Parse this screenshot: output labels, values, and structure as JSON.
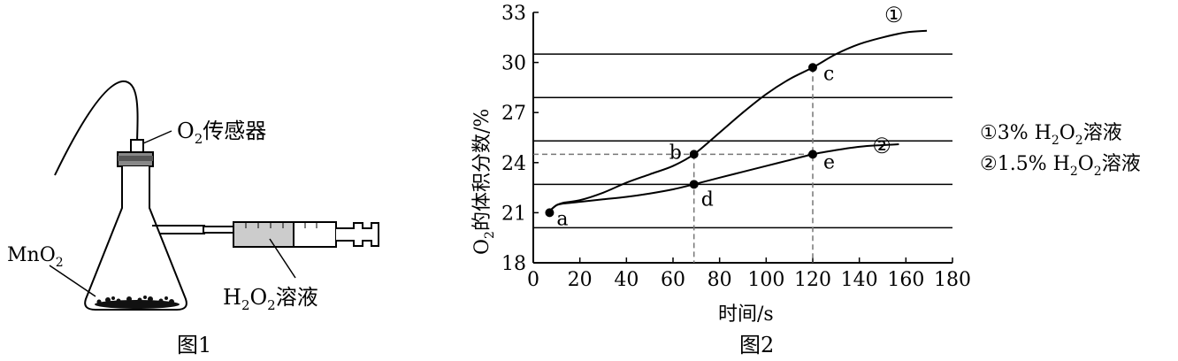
{
  "figure1": {
    "caption": "图1",
    "sensor_label": {
      "prefix": "O",
      "sub": "2",
      "suffix": "传感器"
    },
    "catalyst_label": {
      "prefix": "MnO",
      "sub": "2"
    },
    "syringe_label": {
      "p1": "H",
      "s1": "2",
      "p2": "O",
      "s2": "2",
      "suffix": "溶液"
    }
  },
  "figure2": {
    "caption": "图2"
  },
  "chart_data": {
    "type": "line",
    "xlabel": "时间/s",
    "ylabel": {
      "prefix": "O",
      "sub": "2",
      "suffix": "的体积分数/%"
    },
    "xlim": [
      0,
      180
    ],
    "ylim": [
      18,
      33
    ],
    "x_ticks": [
      0,
      20,
      40,
      60,
      80,
      100,
      120,
      140,
      160,
      180
    ],
    "y_ticks": [
      18,
      21,
      24,
      27,
      30,
      33
    ],
    "gridlines_y": [
      20.1,
      22.7,
      25.3,
      27.9,
      30.5
    ],
    "series": [
      {
        "name": "①",
        "legend": {
          "mark": "①",
          "conc": "3%",
          "p1": "H",
          "s1": "2",
          "p2": "O",
          "s2": "2",
          "suffix": "溶液"
        },
        "points": [
          [
            7,
            21.1
          ],
          [
            10,
            21.45
          ],
          [
            13,
            21.6
          ],
          [
            20,
            21.75
          ],
          [
            30,
            22.2
          ],
          [
            40,
            22.8
          ],
          [
            50,
            23.3
          ],
          [
            60,
            23.8
          ],
          [
            69,
            24.5
          ],
          [
            80,
            25.8
          ],
          [
            90,
            27.0
          ],
          [
            100,
            28.1
          ],
          [
            110,
            29.0
          ],
          [
            120,
            29.7
          ],
          [
            130,
            30.5
          ],
          [
            140,
            31.1
          ],
          [
            150,
            31.5
          ],
          [
            160,
            31.8
          ],
          [
            169,
            31.9
          ]
        ]
      },
      {
        "name": "②",
        "legend": {
          "mark": "②",
          "conc": "1.5%",
          "p1": "H",
          "s1": "2",
          "p2": "O",
          "s2": "2",
          "suffix": "溶液"
        },
        "points": [
          [
            7,
            21.1
          ],
          [
            10,
            21.45
          ],
          [
            13,
            21.55
          ],
          [
            20,
            21.65
          ],
          [
            30,
            21.8
          ],
          [
            40,
            21.95
          ],
          [
            50,
            22.15
          ],
          [
            60,
            22.4
          ],
          [
            69,
            22.7
          ],
          [
            80,
            23.1
          ],
          [
            90,
            23.45
          ],
          [
            100,
            23.8
          ],
          [
            110,
            24.15
          ],
          [
            120,
            24.5
          ],
          [
            130,
            24.75
          ],
          [
            140,
            24.95
          ],
          [
            150,
            25.05
          ],
          [
            157,
            25.1
          ]
        ]
      }
    ],
    "marked_points": [
      {
        "label": "a",
        "x": 7,
        "y": 21.0
      },
      {
        "label": "b",
        "x": 69,
        "y": 24.5
      },
      {
        "label": "c",
        "x": 120,
        "y": 29.7
      },
      {
        "label": "d",
        "x": 69,
        "y": 22.7
      },
      {
        "label": "e",
        "x": 120,
        "y": 24.5
      }
    ]
  }
}
